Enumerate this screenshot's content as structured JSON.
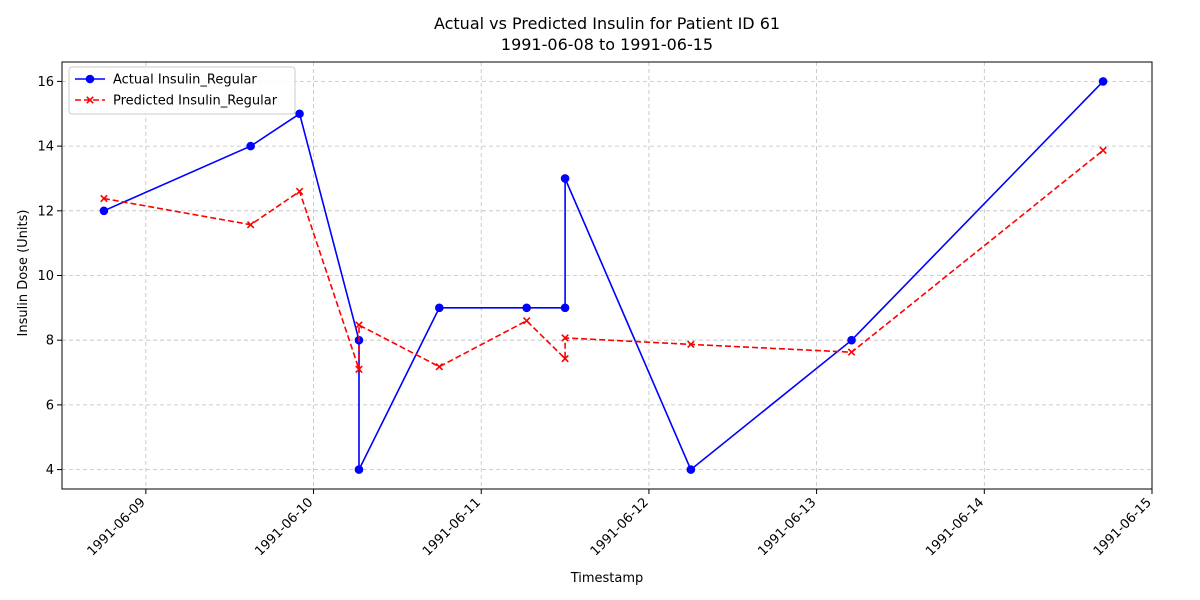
{
  "chart_data": {
    "type": "line",
    "title": "Actual vs Predicted Insulin for Patient ID 61",
    "subtitle": "1991-06-08 to 1991-06-15",
    "xlabel": "Timestamp",
    "ylabel": "Insulin Dose (Units)",
    "x_ticks": [
      "1991-06-09",
      "1991-06-10",
      "1991-06-11",
      "1991-06-12",
      "1991-06-13",
      "1991-06-14",
      "1991-06-15"
    ],
    "y_ticks": [
      4,
      6,
      8,
      10,
      12,
      14,
      16
    ],
    "xlim": [
      "1991-06-08T12:00",
      "1991-06-15T00:00"
    ],
    "ylim": [
      3.4,
      16.6
    ],
    "grid": true,
    "legend_position": "top-left",
    "series": [
      {
        "name": "Actual Insulin_Regular",
        "color": "#0000ff",
        "style": "solid",
        "marker": "circle",
        "points": [
          {
            "x": "1991-06-08T18:00",
            "y": 12
          },
          {
            "x": "1991-06-09T15:00",
            "y": 14
          },
          {
            "x": "1991-06-09T22:00",
            "y": 15
          },
          {
            "x": "1991-06-10T06:30",
            "y": 8
          },
          {
            "x": "1991-06-10T06:30",
            "y": 4
          },
          {
            "x": "1991-06-10T18:00",
            "y": 9
          },
          {
            "x": "1991-06-11T06:30",
            "y": 9
          },
          {
            "x": "1991-06-11T12:00",
            "y": 9
          },
          {
            "x": "1991-06-11T12:00",
            "y": 13
          },
          {
            "x": "1991-06-12T06:00",
            "y": 4
          },
          {
            "x": "1991-06-13T05:00",
            "y": 8
          },
          {
            "x": "1991-06-14T17:00",
            "y": 16
          }
        ]
      },
      {
        "name": "Predicted Insulin_Regular",
        "color": "#ff0000",
        "style": "dashed",
        "marker": "x",
        "points": [
          {
            "x": "1991-06-08T18:00",
            "y": 12.38
          },
          {
            "x": "1991-06-09T15:00",
            "y": 11.57
          },
          {
            "x": "1991-06-09T22:00",
            "y": 12.6
          },
          {
            "x": "1991-06-10T06:30",
            "y": 7.1
          },
          {
            "x": "1991-06-10T06:30",
            "y": 8.47
          },
          {
            "x": "1991-06-10T18:00",
            "y": 7.18
          },
          {
            "x": "1991-06-11T06:30",
            "y": 8.6
          },
          {
            "x": "1991-06-11T12:00",
            "y": 7.43
          },
          {
            "x": "1991-06-11T12:00",
            "y": 8.07
          },
          {
            "x": "1991-06-12T06:00",
            "y": 7.87
          },
          {
            "x": "1991-06-13T05:00",
            "y": 7.63
          },
          {
            "x": "1991-06-14T17:00",
            "y": 13.87
          }
        ]
      }
    ]
  }
}
